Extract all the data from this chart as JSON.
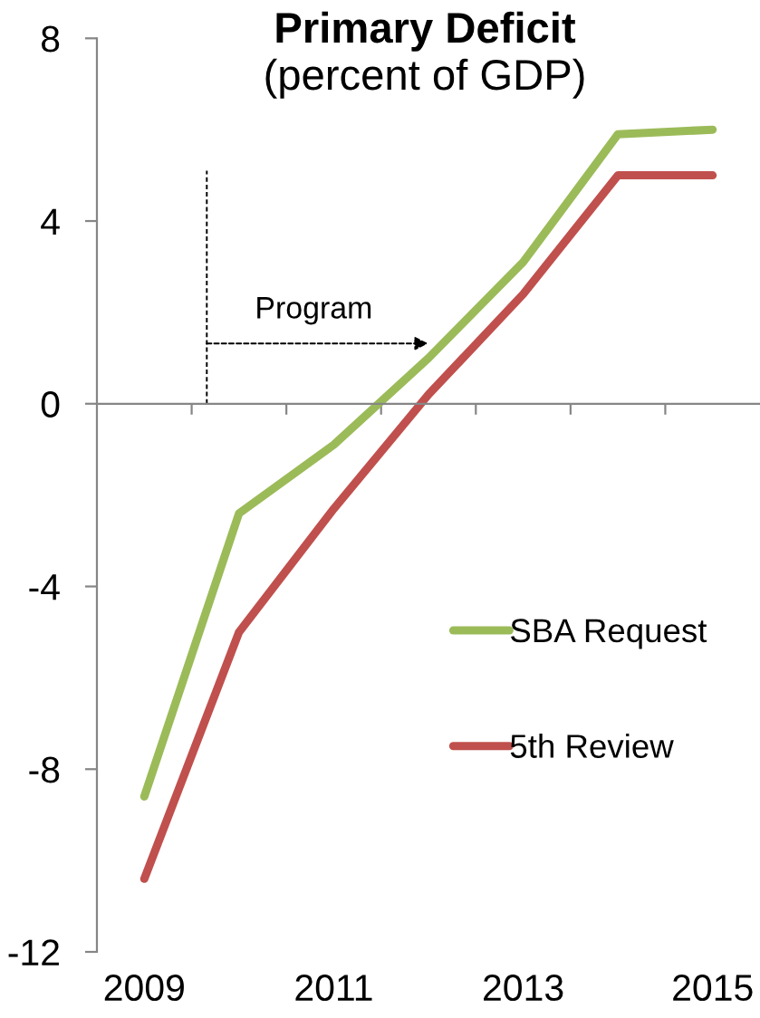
{
  "chart_data": {
    "type": "line",
    "title": "Primary Deficit",
    "subtitle": "(percent of GDP)",
    "x": [
      2009,
      2010,
      2011,
      2012,
      2013,
      2014,
      2015
    ],
    "xlim": [
      2008.5,
      2015.5
    ],
    "xticks": [
      2009,
      {
        "value": 2009.5,
        "label": null
      },
      {
        "value": 2010.5,
        "label": null
      },
      2011,
      {
        "value": 2011.5,
        "label": null
      },
      {
        "value": 2012.5,
        "label": null
      },
      2013,
      {
        "value": 2013.5,
        "label": null
      },
      {
        "value": 2014.5,
        "label": null
      },
      2015
    ],
    "ylim": [
      -12,
      8
    ],
    "yticks": [
      -12,
      -8,
      -4,
      0,
      4,
      8
    ],
    "series": [
      {
        "name": "SBA Request",
        "color": "#9bbb59",
        "values": [
          -8.6,
          -2.4,
          -0.9,
          1.0,
          3.1,
          5.9,
          6.0
        ]
      },
      {
        "name": "5th Review",
        "color": "#c0504d",
        "values": [
          -10.4,
          -5.0,
          -2.3,
          0.2,
          2.4,
          5.0,
          5.0
        ]
      }
    ],
    "ref_lines": [
      {
        "axis": "x",
        "value": 2009.66,
        "label": "Program",
        "color": "#000000",
        "line_style": "dashed"
      }
    ],
    "legend": "lower right"
  }
}
